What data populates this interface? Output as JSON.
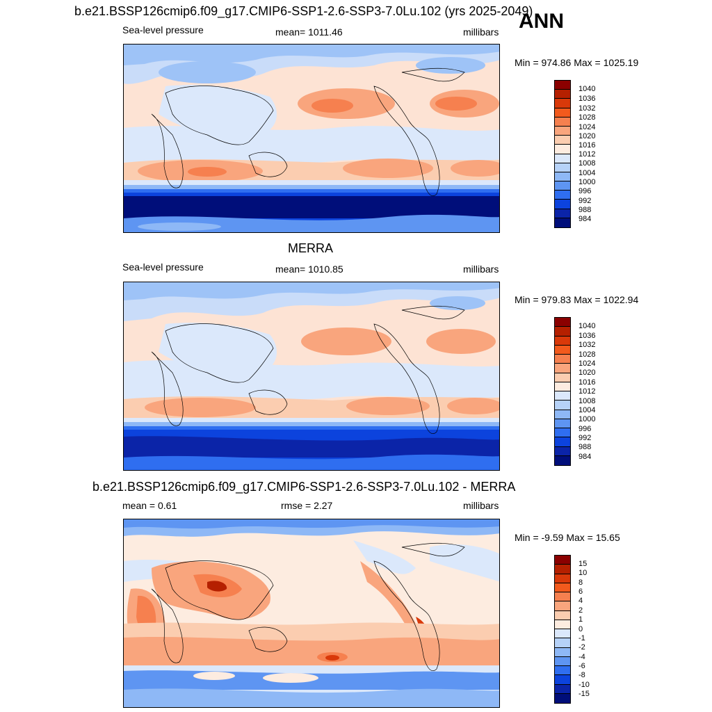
{
  "header": {
    "title": "b.e21.BSSP126cmip6.f09_g17.CMIP6-SSP1-2.6-SSP3-7.0Lu.102 (yrs 2025-2049)",
    "season": "ANN"
  },
  "panels": [
    {
      "title": "",
      "left_label": "Sea-level pressure",
      "center_label": "mean= 1011.46",
      "right_label": "millibars",
      "minmax": "Min = 974.86 Max = 1025.19",
      "colorbar_labels": [
        "1040",
        "1036",
        "1032",
        "1028",
        "1024",
        "1020",
        "1016",
        "1012",
        "1008",
        "1004",
        "1000",
        "996",
        "992",
        "988",
        "984"
      ],
      "colorbar_colors": [
        "#8b0000",
        "#b52000",
        "#d9390a",
        "#f25a1d",
        "#f6804f",
        "#f9a57d",
        "#fbcdb0",
        "#fdece0",
        "#dbe8fb",
        "#b6d2f8",
        "#8eb8f6",
        "#5e95f2",
        "#2f6ef0",
        "#0c43dd",
        "#0b24a8",
        "#000e7a"
      ]
    },
    {
      "title": "MERRA",
      "left_label": "Sea-level pressure",
      "center_label": "mean= 1010.85",
      "right_label": "millibars",
      "minmax": "Min = 979.83 Max = 1022.94",
      "colorbar_labels": [
        "1040",
        "1036",
        "1032",
        "1028",
        "1024",
        "1020",
        "1016",
        "1012",
        "1008",
        "1004",
        "1000",
        "996",
        "992",
        "988",
        "984"
      ],
      "colorbar_colors": [
        "#8b0000",
        "#b52000",
        "#d9390a",
        "#f25a1d",
        "#f6804f",
        "#f9a57d",
        "#fbcdb0",
        "#fdece0",
        "#dbe8fb",
        "#b6d2f8",
        "#8eb8f6",
        "#5e95f2",
        "#2f6ef0",
        "#0c43dd",
        "#0b24a8",
        "#000e7a"
      ]
    },
    {
      "title": "b.e21.BSSP126cmip6.f09_g17.CMIP6-SSP1-2.6-SSP3-7.0Lu.102 - MERRA",
      "left_label": "mean =   0.61",
      "center_label": "rmse =   2.27",
      "right_label": "millibars",
      "minmax": "Min =  -9.59 Max =  15.65",
      "colorbar_labels": [
        "15",
        "10",
        "8",
        "6",
        "4",
        "2",
        "1",
        "0",
        "-1",
        "-2",
        "-4",
        "-6",
        "-8",
        "-10",
        "-15"
      ],
      "colorbar_colors": [
        "#8b0000",
        "#b52000",
        "#d9390a",
        "#f25a1d",
        "#f6804f",
        "#f9a57d",
        "#fbcdb0",
        "#fdece0",
        "#dbe8fb",
        "#b6d2f8",
        "#8eb8f6",
        "#5e95f2",
        "#2f6ef0",
        "#0c43dd",
        "#0b24a8",
        "#000e7a"
      ]
    }
  ]
}
